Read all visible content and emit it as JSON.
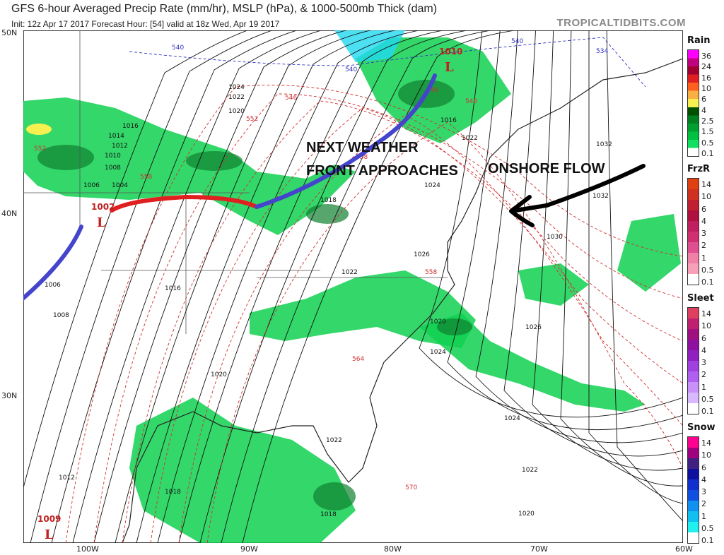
{
  "header": {
    "title": "GFS 6-hour Averaged Precip Rate (mm/hr), MSLP (hPa), & 1000-500mb Thick (dam)",
    "subtitle": "Init: 12z Apr 17 2017   Forecast Hour: [54]   valid at 18z Wed, Apr 19 2017",
    "brand": "TROPICALTIDBITS.COM"
  },
  "axes": {
    "lat": [
      "50N",
      "40N",
      "30N"
    ],
    "lon": [
      "100W",
      "90W",
      "80W",
      "70W",
      "60W"
    ]
  },
  "legend": [
    {
      "title": "Rain",
      "labels": [
        "36",
        "24",
        "16",
        "10",
        "6",
        "4",
        "2.5",
        "1.5",
        "0.5",
        "0.1"
      ],
      "colors": [
        "#ff00ff",
        "#c0007f",
        "#a00030",
        "#e02020",
        "#ff6020",
        "#f8b040",
        "#f8f050",
        "#005000",
        "#008020",
        "#00a030",
        "#00c040",
        "#10e060",
        "#ffffff"
      ]
    },
    {
      "title": "FrzR",
      "labels": [
        "14",
        "10",
        "6",
        "4",
        "3",
        "2",
        "1",
        "0.5",
        "0.1"
      ],
      "colors": [
        "#e04010",
        "#d03020",
        "#c02030",
        "#b01040",
        "#c02060",
        "#d03070",
        "#e05090",
        "#f080a8",
        "#f8a0b8",
        "#ffffff"
      ]
    },
    {
      "title": "Sleet",
      "labels": [
        "14",
        "10",
        "6",
        "4",
        "3",
        "2",
        "1",
        "0.5",
        "0.1"
      ],
      "colors": [
        "#e04060",
        "#c02070",
        "#a01080",
        "#9010a0",
        "#9020c0",
        "#a040e0",
        "#b060f0",
        "#c890f8",
        "#d8b8ff",
        "#ffffff"
      ]
    },
    {
      "title": "Snow",
      "labels": [
        "14",
        "10",
        "6",
        "4",
        "3",
        "2",
        "1",
        "0.5",
        "0.1"
      ],
      "colors": [
        "#ff0090",
        "#a00080",
        "#402080",
        "#1010a0",
        "#1030d0",
        "#1050e0",
        "#1090f0",
        "#10c0f0",
        "#20f0f0",
        "#ffffff"
      ]
    }
  ],
  "annotations": {
    "front_text_1": "NEXT WEATHER",
    "front_text_2": "FRONT APPROACHES",
    "onshore": "ONSHORE FLOW"
  },
  "lows": [
    {
      "pressure": "1010",
      "symbol": "L"
    },
    {
      "pressure": "1002",
      "symbol": "L"
    },
    {
      "pressure": "1009",
      "symbol": "L"
    }
  ],
  "isobar_labels": [
    "1024",
    "1022",
    "1020",
    "1016",
    "1014",
    "1012",
    "1010",
    "1008",
    "1006",
    "1004",
    "1018",
    "1024",
    "1026",
    "1022",
    "1020",
    "1016",
    "1006",
    "1008",
    "1020",
    "1022",
    "1018",
    "1018",
    "1012",
    "1032",
    "1032",
    "1030",
    "1026",
    "1024",
    "1024",
    "1022",
    "1020",
    "1016",
    "1022"
  ],
  "thickness_labels": [
    "540",
    "540",
    "540",
    "534",
    "546",
    "546",
    "552",
    "558",
    "546",
    "552",
    "558",
    "564",
    "570",
    "558"
  ],
  "colors": {
    "precip": "#10d050",
    "precip_dark": "#108030",
    "front_blue": "#4040d0",
    "front_red": "#e02020",
    "thick_red": "#d03030",
    "thick_blue": "#3030c0",
    "snow": "#20d8f0"
  }
}
